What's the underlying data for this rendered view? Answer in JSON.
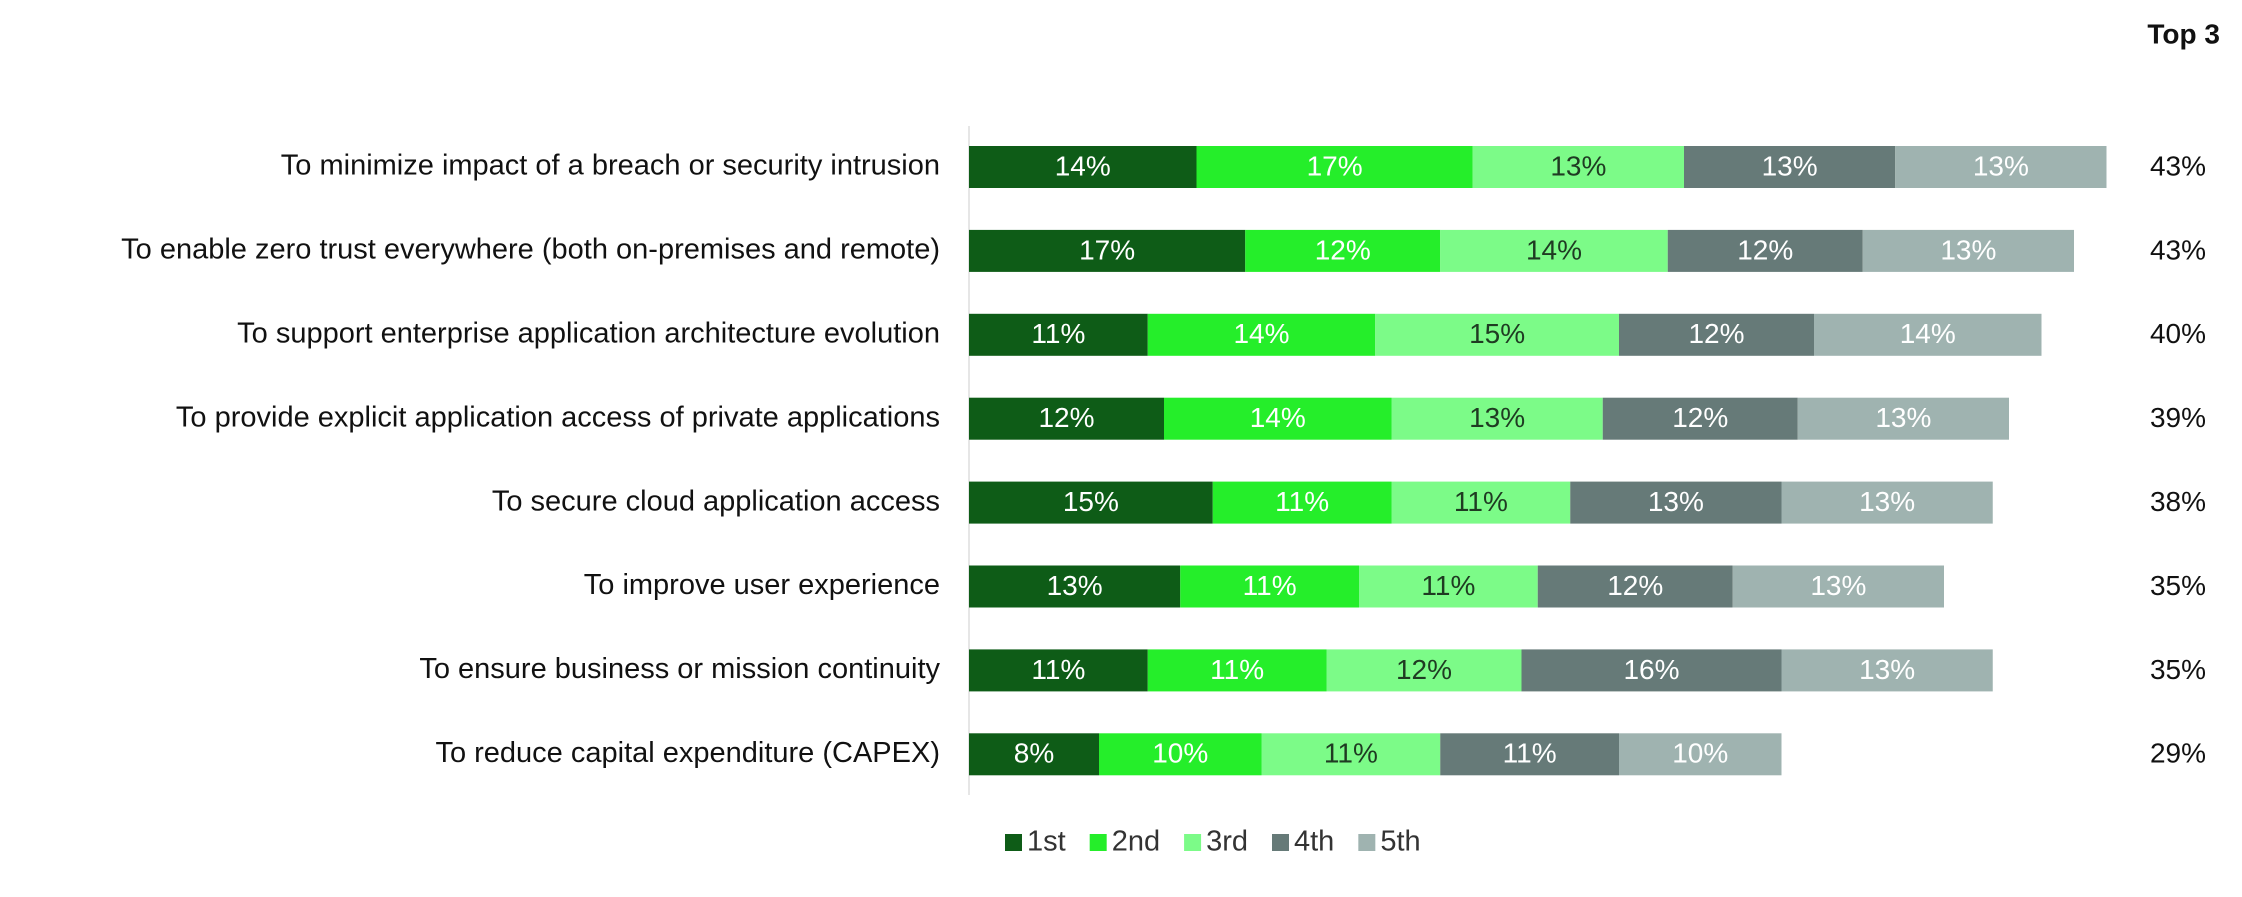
{
  "chart_data": {
    "type": "stacked-bar-horizontal",
    "categories": [
      "To minimize impact of a breach or security intrusion",
      "To enable zero trust everywhere (both on-premises and remote)",
      "To support enterprise application architecture evolution",
      "To provide explicit application access of private applications",
      "To secure cloud application access",
      "To improve user experience",
      "To ensure business or mission continuity",
      "To reduce capital expenditure (CAPEX)"
    ],
    "series": [
      {
        "name": "1st",
        "color": "#0e5c17",
        "label_color": "#ffffff",
        "values": [
          14,
          17,
          11,
          12,
          15,
          13,
          11,
          8
        ],
        "value_labels": [
          "14%",
          "17%",
          "11%",
          "12%",
          "15%",
          "13%",
          "11%",
          "8%"
        ]
      },
      {
        "name": "2nd",
        "color": "#25ee2a",
        "label_color": "#ffffff",
        "values": [
          17,
          12,
          14,
          14,
          11,
          11,
          11,
          10
        ],
        "value_labels": [
          "17%",
          "12%",
          "14%",
          "14%",
          "11%",
          "11%",
          "11%",
          "10%"
        ]
      },
      {
        "name": "3rd",
        "color": "#7cfb88",
        "label_color": "#1f3b22",
        "values": [
          13,
          14,
          15,
          13,
          11,
          11,
          12,
          11
        ],
        "value_labels": [
          "13%",
          "14%",
          "15%",
          "13%",
          "11%",
          "11%",
          "12%",
          "11%"
        ]
      },
      {
        "name": "4th",
        "color": "#667a78",
        "label_color": "#ffffff",
        "values": [
          13,
          12,
          12,
          12,
          13,
          12,
          16,
          11
        ],
        "value_labels": [
          "13%",
          "12%",
          "12%",
          "12%",
          "13%",
          "12%",
          "16%",
          "11%"
        ]
      },
      {
        "name": "5th",
        "color": "#9fb3b0",
        "label_color": "#ffffff",
        "values": [
          13,
          13,
          14,
          13,
          13,
          13,
          13,
          10
        ],
        "value_labels": [
          "13%",
          "13%",
          "14%",
          "13%",
          "13%",
          "13%",
          "13%",
          "10%"
        ]
      }
    ],
    "top3": {
      "title": "Top 3",
      "values": [
        43,
        43,
        40,
        39,
        38,
        35,
        35,
        29
      ],
      "value_labels": [
        "43%",
        "43%",
        "40%",
        "39%",
        "38%",
        "35%",
        "35%",
        "29%"
      ]
    }
  }
}
